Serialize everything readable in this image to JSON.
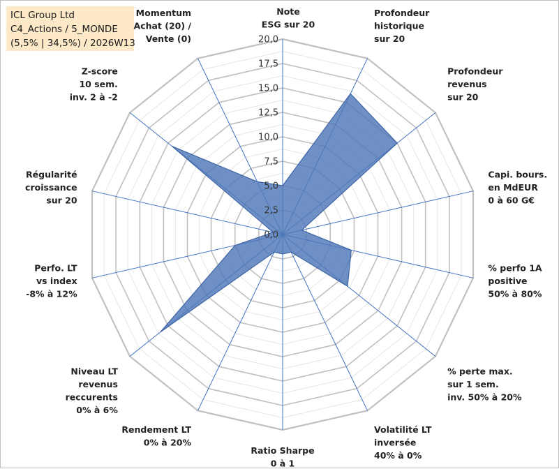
{
  "title_box": {
    "line1": "ICL Group Ltd",
    "line2": "C4_Actions / 5_MONDE",
    "line3": "(5,5% | 34,5%) / 2026W13"
  },
  "chart_data": {
    "type": "radar",
    "rmax": 20,
    "ticks": [
      "0,0",
      "2,5",
      "5,0",
      "7,5",
      "10,0",
      "12,5",
      "15,0",
      "17,5",
      "20,0"
    ],
    "grid_rings": 16,
    "axes": [
      {
        "lines": [
          "Note",
          "ESG sur 20"
        ],
        "value": 5.0
      },
      {
        "lines": [
          "Profondeur",
          "historique",
          "sur 20"
        ],
        "value": 16.0
      },
      {
        "lines": [
          "Profondeur",
          "revenus",
          "sur 20"
        ],
        "value": 15.0
      },
      {
        "lines": [
          "Capi. bours.",
          "en MdEUR",
          "0 à 60 G€"
        ],
        "value": 2.0
      },
      {
        "lines": [
          "% perfo 1A",
          "positive",
          "50% à 80%"
        ],
        "value": 7.2
      },
      {
        "lines": [
          "% perte max.",
          "sur 1 sem.",
          "inv. 50% à 20%"
        ],
        "value": 8.5
      },
      {
        "lines": [
          "Volatilité LT",
          "inversée",
          "40% à 0%"
        ],
        "value": 2.0
      },
      {
        "lines": [
          "Ratio Sharpe",
          "0 à 1"
        ],
        "value": 2.0
      },
      {
        "lines": [
          "Rendement LT",
          "0% à 20%"
        ],
        "value": 2.0
      },
      {
        "lines": [
          "Niveau LT",
          "revenus",
          "reccurents",
          "0% à 6%"
        ],
        "value": 16.0
      },
      {
        "lines": [
          "Perfo. LT",
          "vs index",
          "-8% à 12%"
        ],
        "value": 5.0
      },
      {
        "lines": [
          "Régularité",
          "croissance",
          "sur 20"
        ],
        "value": 1.0
      },
      {
        "lines": [
          "Z-score",
          "10 sem.",
          "inv. 2 à -2"
        ],
        "value": 14.5
      },
      {
        "lines": [
          "Momentum",
          "Achat (20) /",
          "Vente (0)"
        ],
        "value": 6.0
      }
    ],
    "colors": {
      "fill": "#4f78b8",
      "stroke": "#3f66a6",
      "spoke": "#4472c4",
      "grid_major": "#c0c0c0",
      "grid_minor": "#e6e6e6"
    }
  }
}
